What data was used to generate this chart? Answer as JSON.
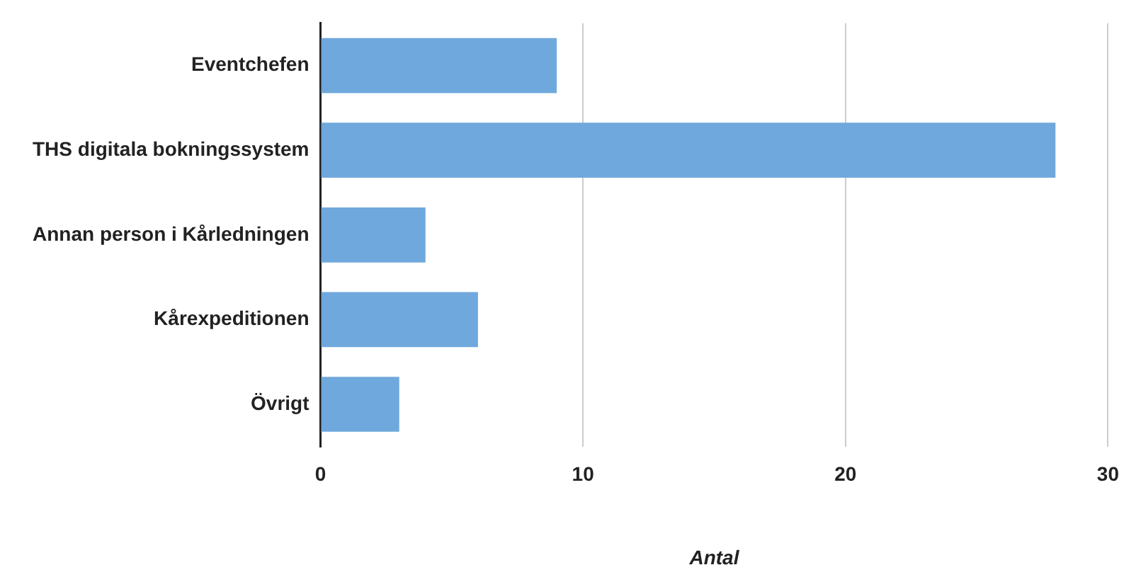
{
  "chart_data": {
    "type": "bar",
    "orientation": "horizontal",
    "xlabel": "Antal",
    "categories": [
      "Eventchefen",
      "THS digitala bokningssystem",
      "Annan person i Kårledningen",
      "Kårexpeditionen",
      "Övrigt"
    ],
    "values": [
      9,
      28,
      4,
      6,
      3
    ],
    "color": "#6fa8dc",
    "xlim": [
      0,
      30
    ],
    "xticks": [
      0,
      10,
      20,
      30
    ],
    "grid": "x"
  }
}
